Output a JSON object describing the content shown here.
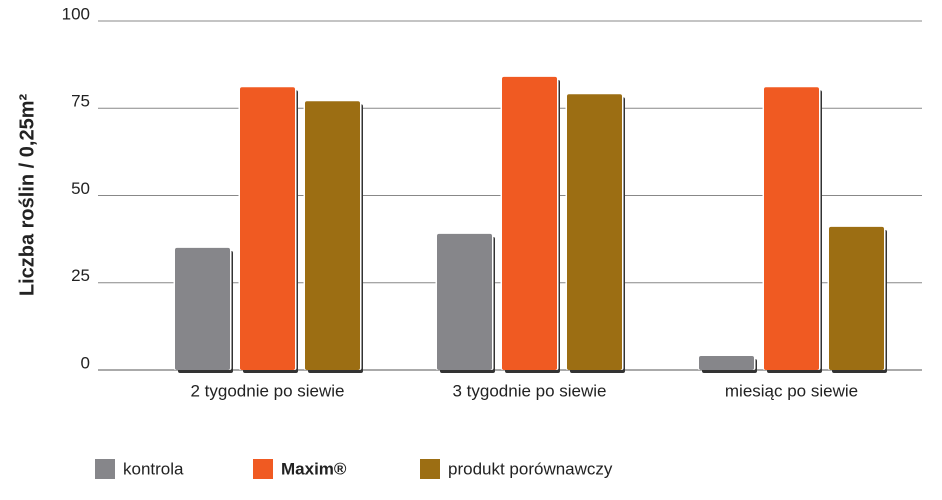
{
  "chart_data": {
    "type": "bar",
    "y_label": "Liczba roślin / 0,25m²",
    "categories": [
      "2 tygodnie po siewie",
      "3 tygodnie po siewie",
      "miesiąc po siewie"
    ],
    "series": [
      {
        "name": "kontrola",
        "color": "#86868a",
        "values": [
          35,
          39,
          4
        ]
      },
      {
        "name": "Maxim®",
        "color": "#f05a22",
        "values": [
          81,
          84,
          81
        ]
      },
      {
        "name": "produkt porównawczy",
        "color": "#9c6e13",
        "values": [
          77,
          79,
          41
        ]
      }
    ],
    "ylim": [
      0,
      100
    ],
    "yticks": [
      0,
      25,
      50,
      75,
      100
    ],
    "grid": true
  }
}
